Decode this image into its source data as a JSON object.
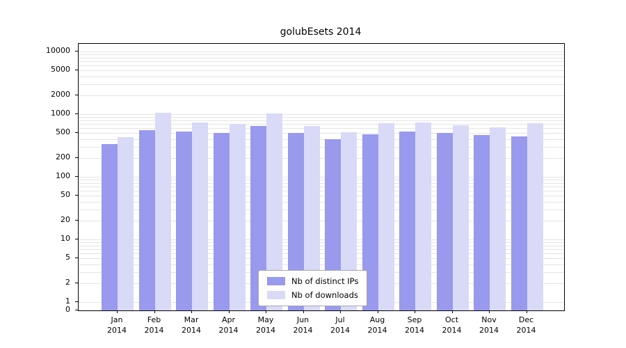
{
  "chart_data": {
    "type": "bar",
    "title": "golubEsets 2014",
    "yscale": "log",
    "grid": true,
    "legend_position": "bottom-center",
    "ylim": [
      0,
      10000
    ],
    "yticks": [
      0,
      1,
      2,
      5,
      10,
      20,
      50,
      100,
      200,
      500,
      1000,
      2000,
      5000,
      10000
    ],
    "categories": [
      "Jan",
      "Feb",
      "Mar",
      "Apr",
      "May",
      "Jun",
      "Jul",
      "Aug",
      "Sep",
      "Oct",
      "Nov",
      "Dec"
    ],
    "year": "2014",
    "series": [
      {
        "name": "Nb of distinct IPs",
        "color": "#9999ee",
        "values": [
          330,
          560,
          530,
          500,
          650,
          500,
          400,
          480,
          530,
          505,
          465,
          445
        ]
      },
      {
        "name": "Nb of downloads",
        "color": "#d9d9f8",
        "values": [
          430,
          1050,
          730,
          700,
          1030,
          650,
          510,
          720,
          730,
          665,
          610,
          720
        ]
      }
    ]
  }
}
